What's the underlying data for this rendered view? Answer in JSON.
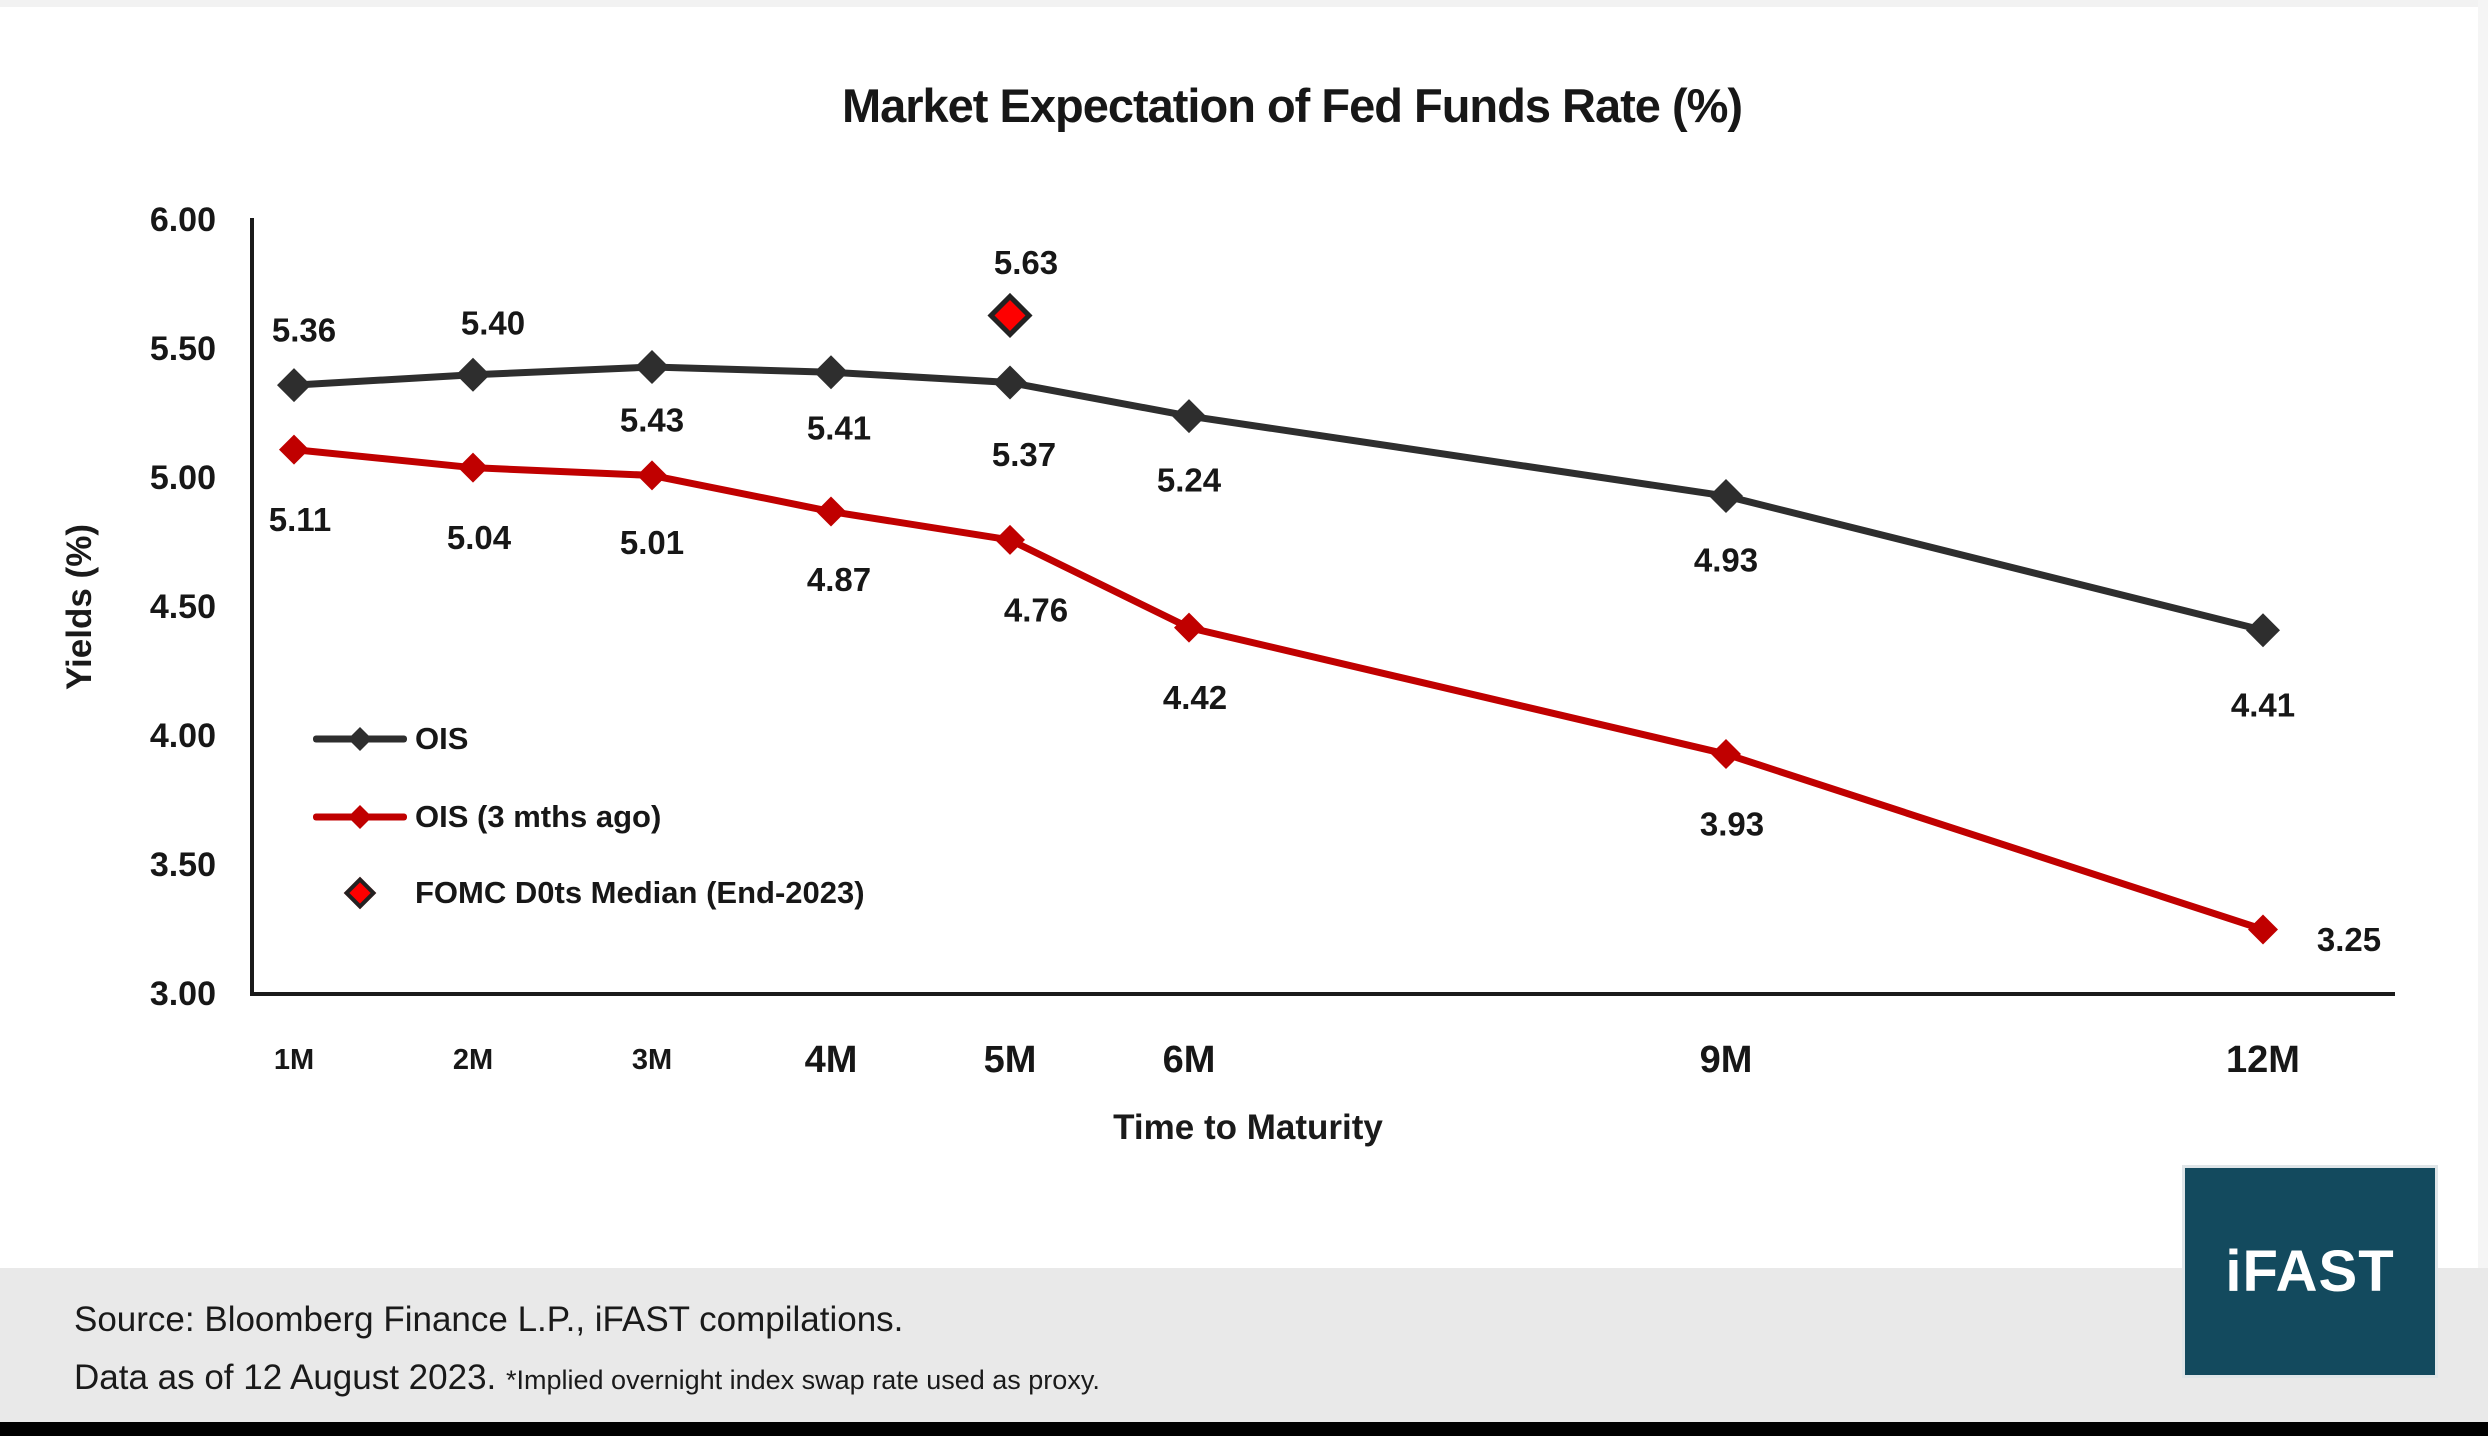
{
  "title": "Market Expectation of Fed Funds Rate (%)",
  "chart_data": {
    "type": "line",
    "title": "Market Expectation of Fed Funds Rate (%)",
    "xlabel": "Time to Maturity",
    "ylabel": "Yields (%)",
    "x_categories": [
      "1M",
      "2M",
      "3M",
      "4M",
      "5M",
      "6M",
      "9M",
      "12M"
    ],
    "x_months": [
      1,
      2,
      3,
      4,
      5,
      6,
      9,
      12
    ],
    "ylim": [
      3.0,
      6.0
    ],
    "yticks": [
      "6.00",
      "5.50",
      "5.00",
      "4.50",
      "4.00",
      "3.50",
      "3.00"
    ],
    "grid": false,
    "legend_position": "inside-left",
    "series": [
      {
        "name": "OIS",
        "color": "#2e2e2e",
        "values": [
          5.36,
          5.4,
          5.43,
          5.41,
          5.37,
          5.24,
          4.93,
          4.41
        ]
      },
      {
        "name": "OIS (3 mths ago)",
        "color": "#c00000",
        "values": [
          5.11,
          5.04,
          5.01,
          4.87,
          4.76,
          4.42,
          3.93,
          3.25
        ]
      }
    ],
    "point_series": {
      "name": "FOMC D0ts Median (End-2023)",
      "fill": "#fe0000",
      "outline": "#222222",
      "x_month": 5,
      "value": 5.63
    }
  },
  "colors": {
    "ois": "#2e2e2e",
    "ois_3m": "#c00000",
    "fomc_dot": "#fe0000",
    "axis": "#1a1a1a",
    "footer_band": "#e9e9e9",
    "logo_teal": "#134a5e"
  },
  "footer": {
    "source_line": "Source: Bloomberg Finance L.P., iFAST compilations.",
    "data_line": "Data as of 12 August 2023.",
    "note": "*Implied overnight index swap rate used as proxy.",
    "logo_text": "iFAST"
  }
}
